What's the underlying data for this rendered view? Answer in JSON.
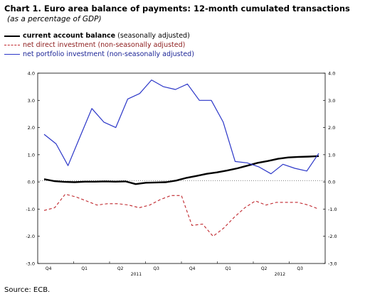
{
  "title": "Chart 1. Euro area balance of payments: 12-month cumulated transactions",
  "subtitle": "(as a percentage of GDP)",
  "legend": [
    {
      "bold": "current account balance",
      "paren": "(seasonally adjusted)",
      "style": "solid-thick",
      "color": "#000000"
    },
    {
      "bold": "",
      "paren": "net direct investment (non-seasonally adjusted)",
      "style": "dashed",
      "color": "#c0272d"
    },
    {
      "bold": "",
      "paren": "net portfolio investment (non-seasonally adjusted)",
      "style": "solid",
      "color": "#2b36c8"
    }
  ],
  "source": "Source: ECB.",
  "chart_data": {
    "type": "line",
    "ylim": [
      -3.0,
      4.0
    ],
    "yticks": [
      "4.0",
      "3.0",
      "2.0",
      "1.0",
      "0.0",
      "-1.0",
      "-2.0",
      "-3.0"
    ],
    "right_axis": true,
    "quarter_labels": [
      "Q4",
      "Q1",
      "Q2",
      "Q3",
      "Q4",
      "Q1",
      "Q2",
      "Q3"
    ],
    "year_labels": [
      "2011",
      "2012"
    ],
    "reference_line": {
      "y": 0.05,
      "style": "dotted"
    },
    "series": [
      {
        "name": "current account balance",
        "color": "#000000",
        "style": "solid",
        "values": [
          0.1,
          0.03,
          0.0,
          -0.01,
          0.01,
          0.01,
          0.02,
          0.01,
          0.02,
          -0.08,
          -0.03,
          -0.02,
          -0.01,
          0.05,
          0.15,
          0.22,
          0.3,
          0.35,
          0.42,
          0.5,
          0.6,
          0.7,
          0.77,
          0.85,
          0.9,
          0.92,
          0.93,
          0.95
        ]
      },
      {
        "name": "net direct investment",
        "color": "#c0272d",
        "style": "dashed",
        "values": [
          -1.05,
          -0.95,
          -0.45,
          -0.55,
          -0.7,
          -0.85,
          -0.8,
          -0.8,
          -0.85,
          -0.95,
          -0.85,
          -0.65,
          -0.5,
          -0.5,
          -1.6,
          -1.55,
          -2.0,
          -1.7,
          -1.3,
          -0.95,
          -0.7,
          -0.85,
          -0.75,
          -0.75,
          -0.75,
          -0.85,
          -1.0
        ]
      },
      {
        "name": "net portfolio investment",
        "color": "#2b36c8",
        "style": "solid",
        "values": [
          1.75,
          1.4,
          0.6,
          1.65,
          2.7,
          2.2,
          2.0,
          3.05,
          3.25,
          3.75,
          3.5,
          3.4,
          3.6,
          3.0,
          3.0,
          2.2,
          0.75,
          0.7,
          0.55,
          0.3,
          0.65,
          0.5,
          0.4,
          1.05
        ]
      }
    ]
  }
}
